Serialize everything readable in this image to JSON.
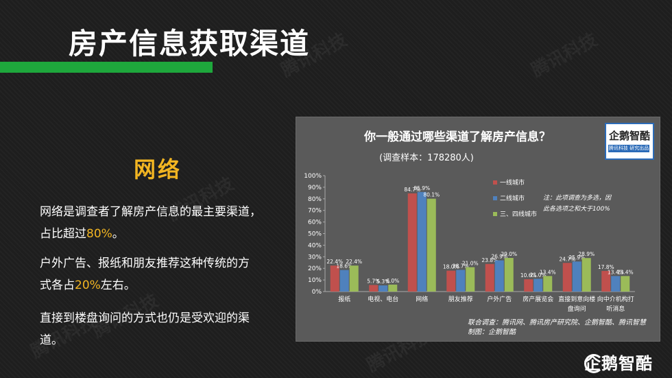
{
  "header": {
    "title": "房产信息获取渠道"
  },
  "watermarks": [
    "腾讯科技",
    "腾讯科技",
    "腾讯科技",
    "腾讯科技",
    "腾讯科技",
    "腾讯科技"
  ],
  "section": {
    "heading": "网络"
  },
  "paragraphs": {
    "p1_a": "网络是调查者了解房产信息的最主要渠道，",
    "p1_b": "占比超过",
    "p1_hl": "80%",
    "p1_c": "。",
    "p2_a": "户外广告、报纸和朋友推荐这种传统的方",
    "p2_b": "式各占",
    "p2_hl": "20%",
    "p2_c": "左右。",
    "p3_a": "直接到楼盘询问的方式也仍是受欢迎的渠",
    "p3_b": "道。"
  },
  "chart_panel": {
    "logo_main": "企鹅智酷",
    "logo_strip": "腾讯科技 研究出品",
    "note_1": "注：此项调查为多选，因",
    "note_2": "此各选项之和大于100%",
    "source_1": "联合调查：腾讯网、腾讯房产研究院、企鹅智酷、腾讯智慧",
    "source_2": "制图：企鹅智酷"
  },
  "brand": {
    "name": "企鹅智酷"
  },
  "colors": {
    "accent_green": "#1ea73c",
    "highlight": "#f2b522",
    "series1": "#c0504d",
    "series2": "#4f81bd",
    "series3": "#9bbb59"
  },
  "chart_data": {
    "type": "bar",
    "title": "你一般通过哪些渠道了解房产信息？",
    "subtitle": "(调查样本：178280人)",
    "categories": [
      "报纸",
      "电视、电台",
      "网络",
      "朋友推荐",
      "户外广告",
      "房产展览会",
      "直接到意向楼盘询问",
      "向中介机构打听消息"
    ],
    "series": [
      {
        "name": "一线城市",
        "values": [
          22.4,
          5.7,
          84.7,
          18.0,
          23.8,
          10.6,
          24.7,
          17.8
        ]
      },
      {
        "name": "二线城市",
        "values": [
          18.6,
          5.3,
          85.9,
          18.7,
          26.9,
          11.0,
          25.9,
          13.4
        ]
      },
      {
        "name": "三、四线城市",
        "values": [
          22.4,
          6.0,
          80.1,
          21.0,
          29.0,
          13.4,
          28.9,
          13.4
        ]
      }
    ],
    "value_labels": [
      [
        "22.4%",
        "5.7%",
        "84.7%",
        "18.0%",
        "23.8%",
        "10.6%",
        "24.7%",
        "17.8%"
      ],
      [
        "18.6%",
        "5.3%",
        "85.9%",
        "18.7%",
        "26.9%",
        "11.0%",
        "25.9%",
        "13.4%"
      ],
      [
        "22.4%",
        "6.0%",
        "80.1%",
        "21.0%",
        "29.0%",
        "13.4%",
        "28.9%",
        "13.4%"
      ]
    ],
    "y_ticks": [
      "0%",
      "10%",
      "20%",
      "30%",
      "40%",
      "50%",
      "60%",
      "70%",
      "80%",
      "90%",
      "100%"
    ],
    "ylim": [
      0,
      100
    ],
    "legend_position": "top-right",
    "grid": false
  }
}
